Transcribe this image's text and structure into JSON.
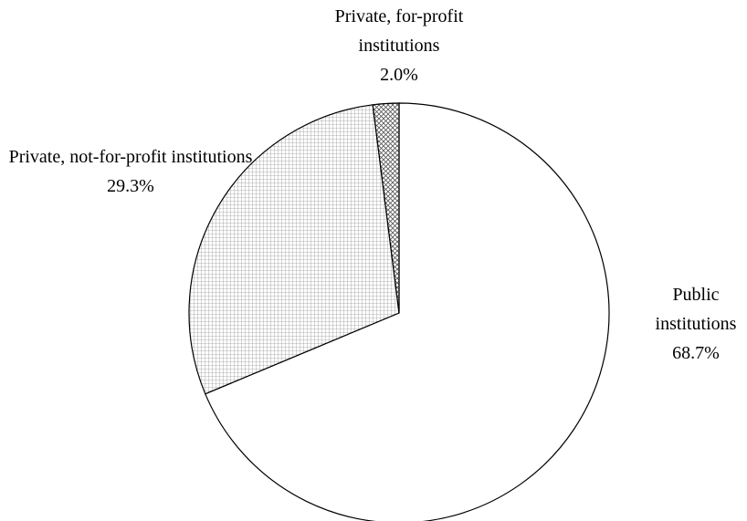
{
  "chart_data": {
    "type": "pie",
    "categories": [
      "Public institutions",
      "Private, not-for-profit institutions",
      "Private, for-profit institutions"
    ],
    "values": [
      68.7,
      29.3,
      2.0
    ],
    "value_labels": [
      "68.7%",
      "29.3%",
      "2.0%"
    ]
  }
}
